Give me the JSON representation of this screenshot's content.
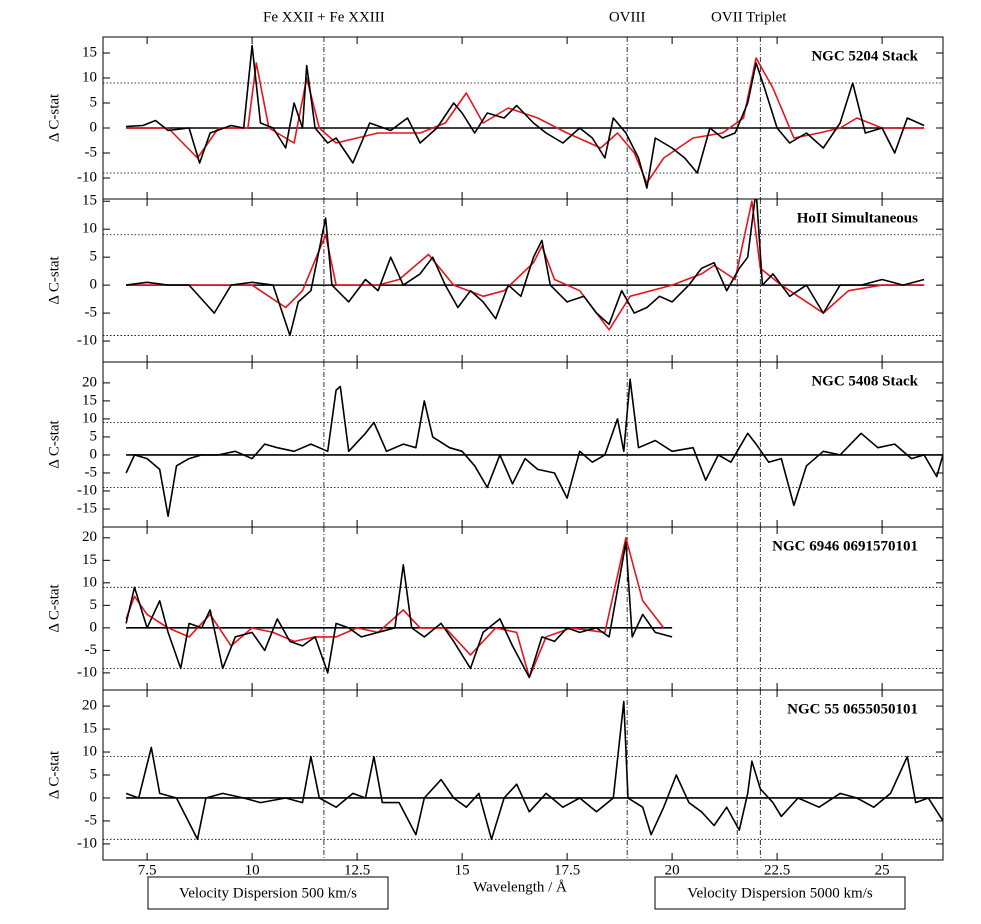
{
  "chart_data": {
    "type": "line",
    "x_label": "Wavelength / Å",
    "y_label": "Δ C-stat",
    "xlim": [
      6.45,
      26.45
    ],
    "xticks": [
      7.5,
      10,
      12.5,
      15,
      17.5,
      20,
      22.5,
      25
    ],
    "hlines": [
      -9,
      9
    ],
    "vlines": [
      {
        "values": [
          11.71
        ],
        "label": "Fe XXII + Fe XXIII"
      },
      {
        "values": [
          18.93
        ],
        "label": "OVIII"
      },
      {
        "values": [
          21.55,
          22.1
        ],
        "label": "OVII Triplet"
      }
    ],
    "legend": [
      {
        "label": "Velocity Dispersion 500 km/s",
        "color": "#000000"
      },
      {
        "label": "Velocity Dispersion 5000 km/s",
        "color": "#e8141c"
      }
    ],
    "panels": [
      {
        "title": "NGC 5204 Stack",
        "ylim": [
          -14.2,
          18.2
        ],
        "yticks": [
          -10,
          -5,
          0,
          5,
          10,
          15
        ],
        "series": [
          {
            "color": "#e8141c",
            "x": [
              7.0,
              8.0,
              8.7,
              9.2,
              9.9,
              10.1,
              10.4,
              11.0,
              11.3,
              11.6,
              12.0,
              13.0,
              14.0,
              14.6,
              15.1,
              15.5,
              16.1,
              16.8,
              17.5,
              18.3,
              18.7,
              19.1,
              19.4,
              19.8,
              20.5,
              21.2,
              21.7,
              22.0,
              22.4,
              22.9,
              23.5,
              24.0,
              24.4,
              25.0,
              26.0
            ],
            "values": [
              0,
              0,
              -6,
              0,
              0,
              13,
              0,
              -3,
              10,
              0,
              -3,
              -1,
              -1,
              1,
              7,
              1,
              4,
              2,
              -1,
              -4,
              -1,
              -5,
              -11,
              -6,
              -2,
              -1,
              2,
              14,
              8,
              -2,
              -1,
              0,
              2,
              0,
              0
            ]
          },
          {
            "color": "#000000",
            "x": [
              7.0,
              7.4,
              7.7,
              8.0,
              8.5,
              8.75,
              9.0,
              9.5,
              9.8,
              10.0,
              10.2,
              10.5,
              10.8,
              11.0,
              11.2,
              11.3,
              11.5,
              11.8,
              12.0,
              12.4,
              12.8,
              13.3,
              13.7,
              14.0,
              14.4,
              14.8,
              15.0,
              15.3,
              15.6,
              16.0,
              16.3,
              16.7,
              17.0,
              17.4,
              17.8,
              18.1,
              18.4,
              18.6,
              18.9,
              19.2,
              19.4,
              19.6,
              20.0,
              20.3,
              20.6,
              20.9,
              21.2,
              21.5,
              21.8,
              22.0,
              22.2,
              22.5,
              22.8,
              23.2,
              23.6,
              24.0,
              24.3,
              24.6,
              25.0,
              25.3,
              25.6,
              26.0
            ],
            "values": [
              0.3,
              0.5,
              1.5,
              -0.5,
              0,
              -7,
              -1,
              0.5,
              0,
              16.5,
              1,
              0,
              -4,
              5,
              0,
              12.5,
              0,
              -3,
              -2,
              -7,
              1,
              -0.5,
              2,
              -3,
              0,
              5,
              3,
              -1,
              3,
              2,
              4.5,
              1,
              -1,
              -3,
              0,
              -2,
              -6,
              2,
              -1,
              -6,
              -12,
              -2,
              -4,
              -6,
              -9,
              0,
              -2,
              -1,
              5,
              13,
              8,
              0,
              -3,
              -1,
              -4,
              1,
              9,
              -1,
              0,
              -5,
              2,
              0.5
            ]
          }
        ]
      },
      {
        "title": "HoII Simultaneous",
        "ylim": [
          -13.75,
          15.4
        ],
        "yticks": [
          -10,
          -5,
          0,
          5,
          10,
          15
        ],
        "series": [
          {
            "color": "#e8141c",
            "x": [
              7.0,
              8.0,
              9.0,
              10.0,
              10.8,
              11.2,
              11.75,
              12.0,
              13.0,
              13.5,
              14.2,
              14.8,
              15.5,
              16.0,
              16.7,
              16.9,
              17.2,
              17.8,
              18.5,
              19.0,
              20.0,
              20.7,
              21.0,
              21.5,
              21.9,
              22.1,
              22.6,
              23.0,
              23.6,
              24.2,
              25.0,
              26.0
            ],
            "values": [
              0,
              0,
              0,
              0,
              -4,
              -1,
              9,
              0,
              0,
              1,
              5.5,
              0,
              -2,
              -1,
              4,
              7,
              1,
              -1,
              -8,
              -2,
              0,
              2,
              3.5,
              1,
              15,
              3,
              0,
              -2,
              -5,
              -1,
              0,
              0
            ]
          },
          {
            "color": "#000000",
            "x": [
              7.0,
              7.5,
              8.0,
              8.5,
              9.1,
              9.5,
              10.0,
              10.5,
              10.9,
              11.1,
              11.4,
              11.75,
              11.9,
              12.3,
              12.7,
              13.0,
              13.3,
              13.6,
              14.0,
              14.3,
              14.6,
              14.9,
              15.2,
              15.5,
              15.8,
              16.1,
              16.4,
              16.7,
              16.9,
              17.1,
              17.5,
              17.9,
              18.2,
              18.5,
              18.8,
              19.1,
              19.4,
              19.7,
              20.0,
              20.4,
              20.7,
              21.0,
              21.3,
              21.6,
              21.8,
              22.0,
              22.15,
              22.4,
              22.8,
              23.2,
              23.6,
              24.0,
              24.5,
              25.0,
              25.5,
              26.0
            ],
            "values": [
              0,
              0.5,
              0,
              0,
              -5,
              0,
              0.5,
              0,
              -9,
              -3,
              -1,
              12,
              0,
              -3,
              1,
              -1,
              5,
              0,
              2,
              5,
              0,
              -4,
              -1,
              -3,
              -6,
              0,
              -2,
              5,
              8,
              0,
              -3,
              -2,
              -5,
              -7,
              -1,
              -5,
              -4,
              -2,
              -3,
              0,
              3,
              4,
              -1,
              3,
              5,
              17,
              0,
              2,
              -2,
              0,
              -5,
              0,
              0,
              1,
              0,
              1
            ]
          }
        ]
      },
      {
        "title": "NGC 5408 Stack",
        "ylim": [
          -20,
          25.8
        ],
        "yticks": [
          -15,
          -10,
          -5,
          0,
          5,
          10,
          15,
          20
        ],
        "series": [
          {
            "color": "#000000",
            "x": [
              7.0,
              7.2,
              7.5,
              7.8,
              8.0,
              8.2,
              8.5,
              8.8,
              9.2,
              9.6,
              10.0,
              10.3,
              10.6,
              11.0,
              11.4,
              11.8,
              12.0,
              12.1,
              12.3,
              12.7,
              12.9,
              13.2,
              13.6,
              13.9,
              14.1,
              14.3,
              14.7,
              15.0,
              15.3,
              15.6,
              15.9,
              16.2,
              16.5,
              16.8,
              17.2,
              17.5,
              17.8,
              18.1,
              18.4,
              18.7,
              18.85,
              19.0,
              19.2,
              19.6,
              20.0,
              20.5,
              20.8,
              21.1,
              21.4,
              21.8,
              22.0,
              22.3,
              22.6,
              22.9,
              23.2,
              23.6,
              24.0,
              24.5,
              24.9,
              25.3,
              25.7,
              26.0,
              26.3,
              26.45
            ],
            "values": [
              -5,
              0,
              -1,
              -4,
              -17,
              -3,
              -1,
              0,
              0,
              1,
              -1,
              3,
              2,
              1,
              3,
              1,
              18,
              19,
              1,
              6,
              9,
              1,
              3,
              2,
              15,
              5,
              2,
              1,
              -3,
              -9,
              0,
              -8,
              -1,
              -4,
              -5,
              -12,
              1,
              -2,
              0,
              10,
              1,
              21,
              2,
              4,
              1,
              2,
              -7,
              0,
              -2,
              6,
              3,
              -2,
              -1,
              -14,
              -3,
              1,
              0,
              6,
              2,
              3,
              -1,
              0,
              -6,
              0
            ]
          }
        ]
      },
      {
        "title": "NGC 6946 0691570101",
        "ylim": [
          -13.8,
          22.4
        ],
        "yticks": [
          -10,
          -5,
          0,
          5,
          10,
          15,
          20
        ],
        "series": [
          {
            "color": "#e8141c",
            "x": [
              7.0,
              7.2,
              7.5,
              8.0,
              8.5,
              9.0,
              9.5,
              10.0,
              10.5,
              11.0,
              11.5,
              12.0,
              12.5,
              13.0,
              13.6,
              14.0,
              14.6,
              15.2,
              15.8,
              16.3,
              16.6,
              17.0,
              17.6,
              18.4,
              18.9,
              19.3,
              19.8
            ],
            "values": [
              2,
              7,
              3,
              0,
              -2,
              3,
              -4,
              0,
              -1,
              -3,
              -2,
              -2,
              0,
              -1,
              4,
              0,
              0,
              -6,
              0,
              -1,
              -11,
              -2,
              0,
              -1,
              20,
              6,
              0
            ]
          },
          {
            "color": "#000000",
            "x": [
              7.0,
              7.2,
              7.5,
              7.8,
              8.0,
              8.3,
              8.5,
              8.8,
              9.0,
              9.3,
              9.6,
              10.0,
              10.3,
              10.6,
              10.9,
              11.2,
              11.5,
              11.8,
              12.0,
              12.3,
              12.6,
              13.0,
              13.4,
              13.6,
              13.8,
              14.1,
              14.5,
              14.8,
              15.2,
              15.5,
              15.9,
              16.2,
              16.6,
              16.9,
              17.2,
              17.5,
              17.8,
              18.2,
              18.5,
              18.9,
              19.05,
              19.3,
              19.6,
              20.0
            ],
            "values": [
              1,
              9,
              0,
              6,
              -1,
              -9,
              1,
              0,
              4,
              -9,
              -2,
              -1,
              -5,
              2,
              -3,
              -4,
              -2,
              -10,
              1,
              0,
              -2,
              -1,
              0,
              14,
              0,
              -2,
              1,
              -3,
              -9,
              -1,
              2,
              -4,
              -11,
              -2,
              -3,
              0,
              -1,
              0,
              -2,
              19,
              -2,
              3,
              -1,
              -2
            ]
          }
        ]
      },
      {
        "title": "NGC 55 0655050101",
        "ylim": [
          -13.5,
          23.5
        ],
        "yticks": [
          -10,
          -5,
          0,
          5,
          10,
          15,
          20
        ],
        "series": [
          {
            "color": "#000000",
            "x": [
              7.0,
              7.3,
              7.6,
              7.8,
              8.2,
              8.7,
              8.9,
              9.3,
              9.8,
              10.2,
              10.8,
              11.2,
              11.4,
              11.6,
              12.0,
              12.4,
              12.7,
              12.9,
              13.1,
              13.5,
              13.9,
              14.1,
              14.5,
              14.8,
              15.1,
              15.4,
              15.7,
              16.0,
              16.3,
              16.6,
              17.0,
              17.4,
              17.8,
              18.2,
              18.6,
              18.85,
              18.95,
              19.3,
              19.5,
              19.8,
              20.1,
              20.4,
              20.7,
              21.0,
              21.3,
              21.6,
              21.8,
              21.9,
              22.1,
              22.4,
              22.6,
              23.0,
              23.5,
              24.0,
              24.4,
              24.8,
              25.2,
              25.6,
              25.8,
              26.1,
              26.45
            ],
            "values": [
              1,
              0,
              11,
              1,
              0,
              -9,
              0,
              1,
              0,
              -1,
              0,
              -1,
              9,
              0,
              -2,
              1,
              0,
              9,
              -1,
              -1,
              -8,
              0,
              4,
              0,
              -2,
              1,
              -9,
              0,
              3,
              -3,
              1,
              -2,
              0,
              -3,
              0,
              21,
              0,
              -2,
              -8,
              -2,
              5,
              -1,
              -3,
              -6,
              -2,
              -7,
              1,
              8,
              2,
              -1,
              -4,
              0,
              -2,
              1,
              0,
              -2,
              1,
              9,
              -1,
              0,
              -5
            ]
          }
        ]
      }
    ]
  }
}
